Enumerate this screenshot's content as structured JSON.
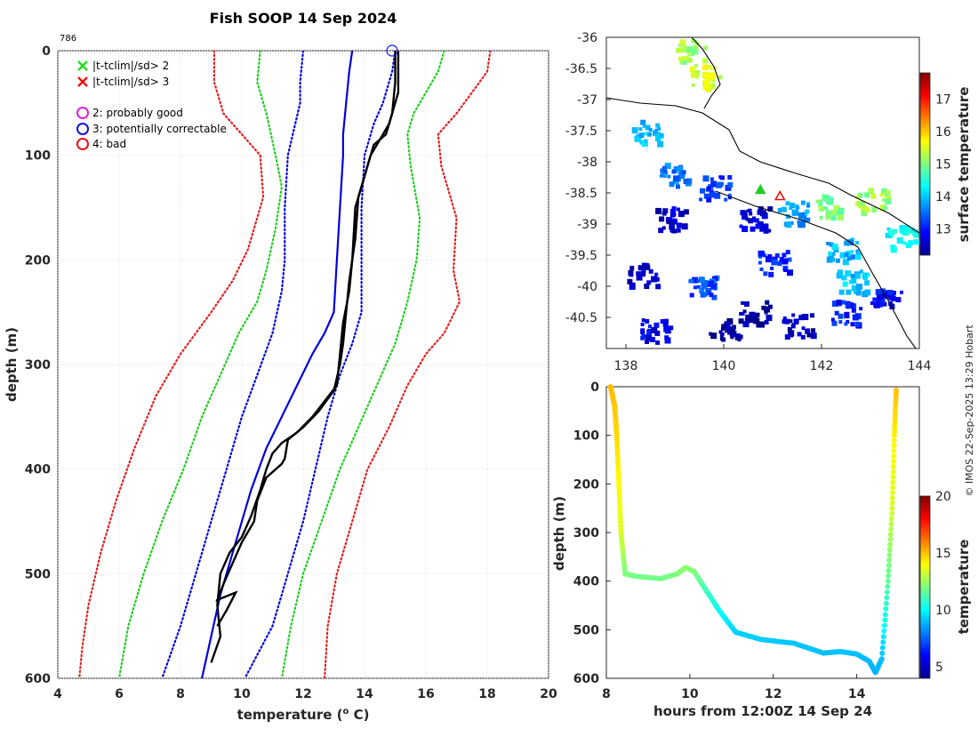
{
  "chart_data": [
    {
      "type": "line",
      "title": "Fish SOOP 14 Sep 2024",
      "profile_id": "786",
      "xlabel": "temperature (",
      "xlabel_sup": "o",
      "xlabel_end": " C)",
      "ylabel": "depth (m)",
      "xlim": [
        4,
        20
      ],
      "ylim": [
        0,
        600
      ],
      "y_reversed": true,
      "xticks": [
        4,
        6,
        8,
        10,
        12,
        14,
        16,
        18,
        20
      ],
      "yticks": [
        0,
        100,
        200,
        300,
        400,
        500,
        600
      ],
      "grid": true,
      "legend": {
        "position": "top-left",
        "items": [
          {
            "marker": "x",
            "color": "#22dd22",
            "label": "|t-tclim|/sd> 2"
          },
          {
            "marker": "x",
            "color": "#ee1111",
            "label": "|t-tclim|/sd> 3"
          },
          {
            "marker": "o",
            "color": "#dd22dd",
            "label": "2: probably good"
          },
          {
            "marker": "o",
            "color": "#1111dd",
            "label": "3: potentially correctable"
          },
          {
            "marker": "o",
            "color": "#ee1111",
            "label": "4: bad"
          }
        ]
      },
      "flag_marker": {
        "x": 14.9,
        "y": 0,
        "color": "#1111dd"
      },
      "series": [
        {
          "name": "climatology mean",
          "style": "solid",
          "color": "#0000dd",
          "points": [
            [
              13.6,
              0
            ],
            [
              13.5,
              20
            ],
            [
              13.4,
              50
            ],
            [
              13.3,
              80
            ],
            [
              13.3,
              100
            ],
            [
              13.2,
              150
            ],
            [
              13.1,
              200
            ],
            [
              13.0,
              250
            ],
            [
              12.7,
              270
            ],
            [
              12.3,
              290
            ],
            [
              11.8,
              320
            ],
            [
              11.3,
              350
            ],
            [
              10.8,
              380
            ],
            [
              10.3,
              420
            ],
            [
              9.8,
              470
            ],
            [
              9.3,
              520
            ],
            [
              9.0,
              560
            ],
            [
              8.7,
              600
            ]
          ]
        },
        {
          "name": "mean - 1 sd",
          "style": "dotted",
          "color": "#0000dd",
          "points": [
            [
              12.0,
              0
            ],
            [
              11.9,
              30
            ],
            [
              11.9,
              50
            ],
            [
              11.5,
              100
            ],
            [
              11.4,
              150
            ],
            [
              11.4,
              200
            ],
            [
              11.3,
              230
            ],
            [
              11.0,
              270
            ],
            [
              10.5,
              310
            ],
            [
              10.0,
              350
            ],
            [
              9.5,
              400
            ],
            [
              9.0,
              450
            ],
            [
              8.5,
              500
            ],
            [
              8.0,
              550
            ],
            [
              7.4,
              600
            ]
          ]
        },
        {
          "name": "mean + 1 sd",
          "style": "dotted",
          "color": "#0000dd",
          "points": [
            [
              15.0,
              0
            ],
            [
              14.9,
              20
            ],
            [
              14.6,
              50
            ],
            [
              14.3,
              70
            ],
            [
              14.0,
              100
            ],
            [
              13.9,
              150
            ],
            [
              13.9,
              200
            ],
            [
              13.9,
              250
            ],
            [
              13.6,
              280
            ],
            [
              13.2,
              310
            ],
            [
              12.8,
              350
            ],
            [
              12.4,
              400
            ],
            [
              12.0,
              450
            ],
            [
              11.5,
              500
            ],
            [
              11.0,
              550
            ],
            [
              10.1,
              600
            ]
          ]
        },
        {
          "name": "mean - 2 sd",
          "style": "dotted",
          "color": "#22cc22",
          "points": [
            [
              10.6,
              0
            ],
            [
              10.5,
              30
            ],
            [
              10.8,
              60
            ],
            [
              11.1,
              100
            ],
            [
              11.3,
              130
            ],
            [
              11.1,
              170
            ],
            [
              10.8,
              210
            ],
            [
              10.5,
              240
            ],
            [
              9.9,
              270
            ],
            [
              9.3,
              310
            ],
            [
              8.7,
              350
            ],
            [
              8.1,
              400
            ],
            [
              7.4,
              450
            ],
            [
              6.8,
              500
            ],
            [
              6.3,
              550
            ],
            [
              6.0,
              600
            ]
          ]
        },
        {
          "name": "mean + 2 sd",
          "style": "dotted",
          "color": "#22cc22",
          "points": [
            [
              16.6,
              0
            ],
            [
              16.4,
              20
            ],
            [
              16.0,
              40
            ],
            [
              15.6,
              60
            ],
            [
              15.4,
              80
            ],
            [
              15.5,
              110
            ],
            [
              15.8,
              160
            ],
            [
              15.7,
              200
            ],
            [
              15.4,
              240
            ],
            [
              15.0,
              280
            ],
            [
              14.4,
              320
            ],
            [
              13.8,
              360
            ],
            [
              13.2,
              400
            ],
            [
              12.6,
              450
            ],
            [
              12.0,
              500
            ],
            [
              11.6,
              550
            ],
            [
              11.3,
              600
            ]
          ]
        },
        {
          "name": "mean - 3 sd",
          "style": "dotted",
          "color": "#dd2222",
          "points": [
            [
              9.1,
              0
            ],
            [
              9.1,
              30
            ],
            [
              9.4,
              60
            ],
            [
              10.0,
              80
            ],
            [
              10.6,
              100
            ],
            [
              10.7,
              140
            ],
            [
              10.2,
              190
            ],
            [
              9.7,
              220
            ],
            [
              9.0,
              250
            ],
            [
              8.0,
              290
            ],
            [
              7.2,
              330
            ],
            [
              6.5,
              380
            ],
            [
              5.9,
              430
            ],
            [
              5.4,
              480
            ],
            [
              5.0,
              530
            ],
            [
              4.8,
              570
            ],
            [
              4.7,
              600
            ]
          ]
        },
        {
          "name": "mean + 3 sd",
          "style": "dotted",
          "color": "#dd2222",
          "points": [
            [
              18.1,
              0
            ],
            [
              18.0,
              20
            ],
            [
              17.5,
              40
            ],
            [
              17.0,
              60
            ],
            [
              16.4,
              80
            ],
            [
              16.5,
              110
            ],
            [
              17.0,
              160
            ],
            [
              16.9,
              210
            ],
            [
              17.1,
              240
            ],
            [
              16.6,
              270
            ],
            [
              16.0,
              290
            ],
            [
              15.4,
              320
            ],
            [
              14.8,
              360
            ],
            [
              14.1,
              400
            ],
            [
              13.6,
              450
            ],
            [
              13.1,
              500
            ],
            [
              12.8,
              550
            ],
            [
              12.7,
              600
            ]
          ]
        },
        {
          "name": "observed profile (down)",
          "style": "solid",
          "color": "#000000",
          "points": [
            [
              15.0,
              0
            ],
            [
              15.0,
              30
            ],
            [
              14.9,
              60
            ],
            [
              14.7,
              80
            ],
            [
              14.3,
              90
            ],
            [
              14.1,
              110
            ],
            [
              13.9,
              130
            ],
            [
              13.7,
              150
            ],
            [
              13.6,
              200
            ],
            [
              13.5,
              230
            ],
            [
              13.3,
              260
            ],
            [
              13.2,
              290
            ],
            [
              13.1,
              320
            ],
            [
              12.7,
              335
            ],
            [
              12.3,
              350
            ],
            [
              11.8,
              365
            ],
            [
              11.3,
              375
            ],
            [
              11.0,
              385
            ],
            [
              10.8,
              400
            ],
            [
              10.6,
              420
            ],
            [
              10.3,
              445
            ],
            [
              10.0,
              465
            ],
            [
              9.6,
              480
            ],
            [
              9.3,
              500
            ],
            [
              9.2,
              530
            ],
            [
              9.3,
              560
            ],
            [
              9.0,
              585
            ]
          ]
        },
        {
          "name": "observed profile (up)",
          "style": "solid",
          "color": "#000000",
          "points": [
            [
              15.1,
              0
            ],
            [
              15.1,
              40
            ],
            [
              14.8,
              70
            ],
            [
              14.5,
              85
            ],
            [
              14.2,
              100
            ],
            [
              14.0,
              120
            ],
            [
              13.8,
              140
            ],
            [
              13.7,
              180
            ],
            [
              13.5,
              220
            ],
            [
              13.4,
              250
            ],
            [
              13.3,
              280
            ],
            [
              13.2,
              300
            ],
            [
              13.0,
              325
            ],
            [
              12.5,
              345
            ],
            [
              12.0,
              360
            ],
            [
              11.5,
              372
            ],
            [
              11.4,
              390
            ],
            [
              11.3,
              395
            ],
            [
              10.8,
              408
            ],
            [
              10.5,
              430
            ],
            [
              10.4,
              450
            ],
            [
              10.0,
              470
            ],
            [
              9.7,
              490
            ],
            [
              9.4,
              510
            ],
            [
              9.2,
              525
            ],
            [
              9.8,
              518
            ],
            [
              9.5,
              535
            ],
            [
              9.2,
              550
            ]
          ]
        }
      ]
    },
    {
      "type": "heatmap",
      "subtype": "map",
      "xlim": [
        137.6,
        144
      ],
      "ylim": [
        -41,
        -36
      ],
      "xticks": [
        138,
        140,
        142,
        144
      ],
      "yticks": [
        -36,
        -36.5,
        -37,
        -37.5,
        -38,
        -38.5,
        -39,
        -39.5,
        -40,
        -40.5
      ],
      "colorbar_label": "surface temperature",
      "colorbar_ticks": [
        13,
        14,
        15,
        16,
        17
      ],
      "colorbar_range": [
        12.2,
        17.8
      ],
      "markers": [
        {
          "shape": "triangle",
          "color": "#ee1111",
          "lon": 141.15,
          "lat": -38.55
        },
        {
          "shape": "triangle",
          "color": "#22cc22",
          "lon": 140.75,
          "lat": -38.45
        }
      ],
      "sst_patches": [
        {
          "lon": 139.3,
          "lat": -36.2,
          "t": 15.2
        },
        {
          "lon": 139.6,
          "lat": -36.6,
          "t": 15.5
        },
        {
          "lon": 138.4,
          "lat": -37.5,
          "t": 14.0
        },
        {
          "lon": 139.0,
          "lat": -38.2,
          "t": 13.6
        },
        {
          "lon": 139.8,
          "lat": -38.4,
          "t": 13.2
        },
        {
          "lon": 140.6,
          "lat": -38.9,
          "t": 12.7
        },
        {
          "lon": 141.4,
          "lat": -38.8,
          "t": 13.8
        },
        {
          "lon": 142.1,
          "lat": -38.7,
          "t": 15.0
        },
        {
          "lon": 143.0,
          "lat": -38.6,
          "t": 15.2
        },
        {
          "lon": 143.6,
          "lat": -39.2,
          "t": 14.3
        },
        {
          "lon": 142.4,
          "lat": -39.4,
          "t": 13.9
        },
        {
          "lon": 141.0,
          "lat": -39.6,
          "t": 13.1
        },
        {
          "lon": 138.3,
          "lat": -39.8,
          "t": 12.6
        },
        {
          "lon": 139.5,
          "lat": -40.0,
          "t": 13.3
        },
        {
          "lon": 140.6,
          "lat": -40.4,
          "t": 12.4
        },
        {
          "lon": 141.5,
          "lat": -40.6,
          "t": 12.5
        },
        {
          "lon": 138.6,
          "lat": -40.7,
          "t": 12.8
        },
        {
          "lon": 140.0,
          "lat": -40.7,
          "t": 12.3
        },
        {
          "lon": 142.5,
          "lat": -40.4,
          "t": 13.0
        },
        {
          "lon": 143.3,
          "lat": -40.1,
          "t": 12.9
        },
        {
          "lon": 138.9,
          "lat": -38.9,
          "t": 12.6
        },
        {
          "lon": 142.6,
          "lat": -39.9,
          "t": 14.0
        }
      ]
    },
    {
      "type": "scatter",
      "xlabel": "hours from 12:00Z 14 Sep 24",
      "ylabel": "depth (m)",
      "xlim": [
        8,
        15.5
      ],
      "ylim": [
        0,
        600
      ],
      "y_reversed": true,
      "xticks": [
        8,
        10,
        12,
        14
      ],
      "yticks": [
        0,
        100,
        200,
        300,
        400,
        500,
        600
      ],
      "colorbar_label": "temperature",
      "colorbar_ticks": [
        5,
        10,
        15,
        20
      ],
      "colorbar_range": [
        4,
        20
      ],
      "track": [
        [
          8.1,
          0,
          15.0
        ],
        [
          8.2,
          40,
          14.9
        ],
        [
          8.25,
          100,
          14.6
        ],
        [
          8.3,
          200,
          14.0
        ],
        [
          8.35,
          300,
          13.4
        ],
        [
          8.45,
          385,
          12.0
        ],
        [
          8.7,
          390,
          11.9
        ],
        [
          9.3,
          395,
          11.8
        ],
        [
          9.7,
          385,
          12.0
        ],
        [
          9.9,
          372,
          12.3
        ],
        [
          10.1,
          380,
          12.1
        ],
        [
          10.4,
          420,
          11.0
        ],
        [
          10.7,
          460,
          10.2
        ],
        [
          11.1,
          505,
          9.3
        ],
        [
          11.7,
          520,
          9.2
        ],
        [
          12.5,
          528,
          9.1
        ],
        [
          13.2,
          548,
          9.0
        ],
        [
          13.6,
          545,
          9.1
        ],
        [
          14.0,
          550,
          9.0
        ],
        [
          14.3,
          565,
          8.9
        ],
        [
          14.45,
          588,
          8.8
        ],
        [
          14.6,
          560,
          9.0
        ],
        [
          14.75,
          400,
          11.5
        ],
        [
          14.85,
          250,
          13.3
        ],
        [
          14.9,
          100,
          14.2
        ],
        [
          14.95,
          0,
          15.0
        ]
      ]
    }
  ],
  "credit": "© IMOS 22-Sep-2025 13:29 Hobart"
}
